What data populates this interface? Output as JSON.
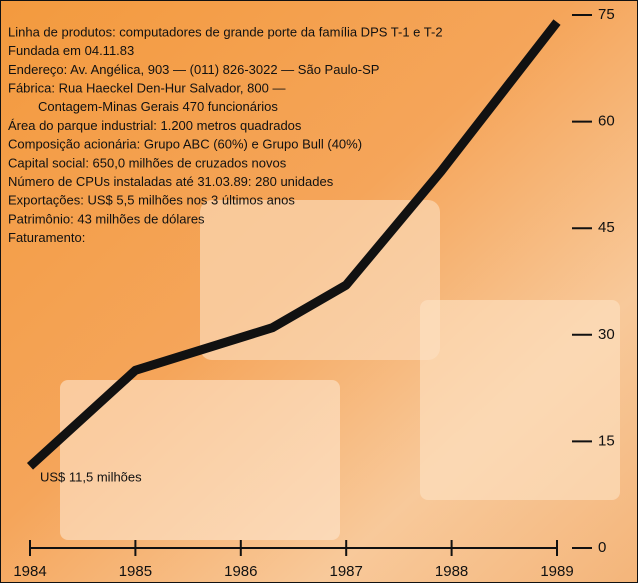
{
  "chart_data": {
    "type": "line",
    "info_lines": [
      "Linha de produtos: computadores de grande porte da família DPS T-1 e T-2",
      "Fundada em 04.11.83",
      "Endereço: Av. Angélica, 903 — (011) 826-3022 — São Paulo-SP",
      "Fábrica: Rua Haeckel Den-Hur Salvador, 800 —",
      "Contagem-Minas Gerais 470 funcionários",
      "Área do parque industrial: 1.200 metros quadrados",
      "Composição acionária: Grupo ABC (60%) e Grupo Bull (40%)",
      "Capital social: 650,0 milhões de cruzados novos",
      "Número de CPUs instaladas até 31.03.89: 280 unidades",
      "Exportações: US$ 5,5 milhões nos 3 últimos anos",
      "Patrimônio: 43 milhões de dólares",
      "Faturamento:"
    ],
    "annotation": "US$ 11,5 milhões",
    "x": [
      1984,
      1985,
      1986.3,
      1987,
      1987.9,
      1989
    ],
    "series": [
      {
        "color": "#111111",
        "values": [
          11.5,
          25,
          31,
          37,
          53,
          74
        ]
      }
    ],
    "xlim": [
      1984,
      1989
    ],
    "xticks": [
      1984,
      1985,
      1986,
      1987,
      1988,
      1989
    ],
    "ylim": [
      0,
      75
    ],
    "yticks": [
      0,
      15,
      30,
      45,
      60,
      75
    ]
  }
}
